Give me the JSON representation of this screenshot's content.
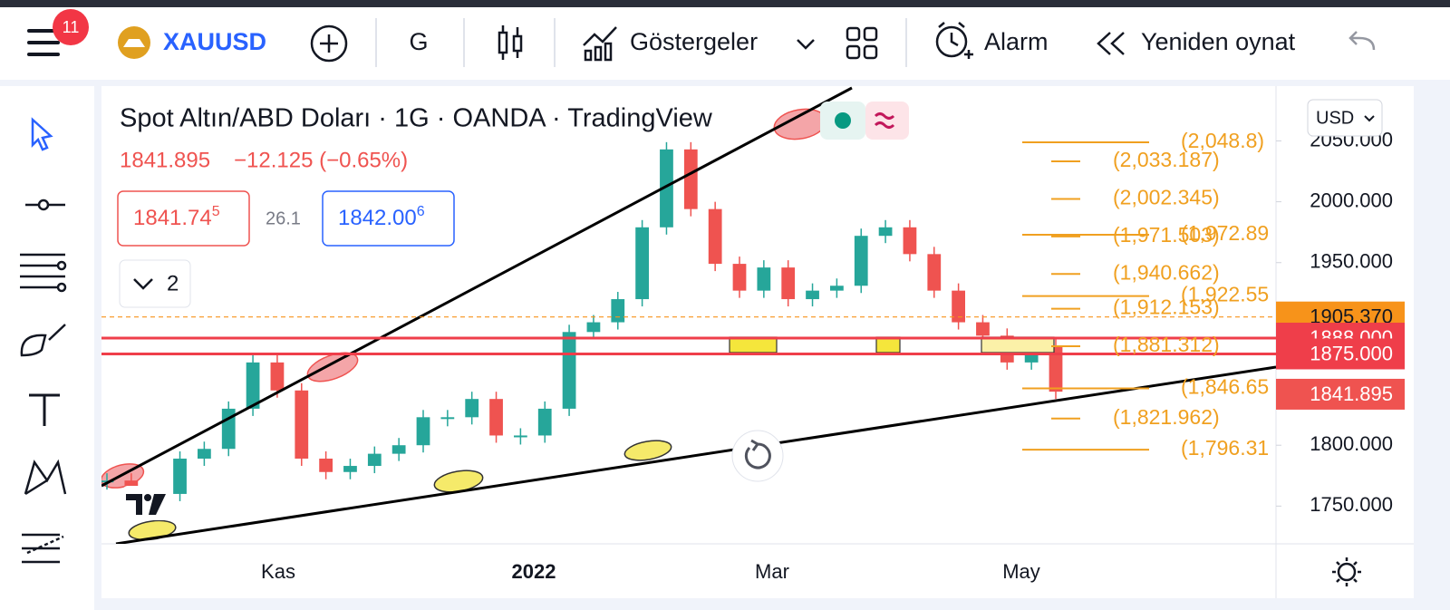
{
  "toolbar": {
    "badge": "11",
    "symbol": "XAUUSD",
    "interval": "G",
    "indicators": "Göstergeler",
    "alarm": "Alarm",
    "replay": "Yeniden oynat"
  },
  "legend": {
    "title": "Spot Altın/ABD Doları · 1G · OANDA · TradingView",
    "price": "1841.895",
    "change": "−12.125 (−0.65%)",
    "sell": "1841.74",
    "sell_sup": "5",
    "spread": "26.1",
    "buy": "1842.00",
    "buy_sup": "6",
    "collapsed": "2"
  },
  "currency": "USD",
  "chart": {
    "type": "candlestick",
    "ylim": [
      1719,
      2095
    ],
    "yticks": [
      {
        "value": 2050,
        "label": "2050.000"
      },
      {
        "value": 2000,
        "label": "2000.000"
      },
      {
        "value": 1950,
        "label": "1950.000"
      },
      {
        "value": 1800,
        "label": "1800.000"
      },
      {
        "value": 1750,
        "label": "1750.000"
      }
    ],
    "time_labels": [
      "Kas",
      "2022",
      "Mar",
      "May"
    ],
    "closes": [
      1771,
      1760,
      1760,
      1789,
      1797,
      1830,
      1868,
      1845,
      1789,
      1778,
      1783,
      1793,
      1800,
      1823,
      1823,
      1838,
      1808,
      1808,
      1830,
      1893,
      1901,
      1920,
      1979,
      2043,
      1994,
      1949,
      1927,
      1946,
      1920,
      1927,
      1931,
      1972,
      1979,
      1957,
      1927,
      1901,
      1890,
      1868,
      1882,
      1844
    ],
    "up_color": "#26a69a",
    "down_color": "#ef5350",
    "price_tags": [
      {
        "value": 1905.37,
        "label": "1905.370",
        "color": "#f7931a"
      },
      {
        "value": 1888,
        "label": "1888.000",
        "color": "#ef3e4a"
      },
      {
        "value": 1875,
        "label": "1875.000",
        "color": "#ef3e4a"
      },
      {
        "value": 1841.895,
        "label": "1841.895",
        "color": "#ef5350"
      }
    ],
    "fib_right": [
      {
        "value": 2048.8,
        "label": "(2,048.8)"
      },
      {
        "value": 1972.89,
        "label": "(1,972.89"
      },
      {
        "value": 1922.55,
        "label": "(1,922.55"
      },
      {
        "value": 1846.65,
        "label": "(1,846.65"
      },
      {
        "value": 1796.31,
        "label": "(1,796.31"
      }
    ],
    "fib_left": [
      {
        "value": 2033.187,
        "label": "(2,033.187)"
      },
      {
        "value": 2002.345,
        "label": "(2,002.345)"
      },
      {
        "value": 1971.503,
        "label": "(1,971.503)"
      },
      {
        "value": 1940.662,
        "label": "(1,940.662)"
      },
      {
        "value": 1912.153,
        "label": "(1,912.153)"
      },
      {
        "value": 1881.312,
        "label": "(1,881.312)"
      },
      {
        "value": 1821.962,
        "label": "(1,821.962)"
      }
    ],
    "fib_color": "#f0a020"
  }
}
